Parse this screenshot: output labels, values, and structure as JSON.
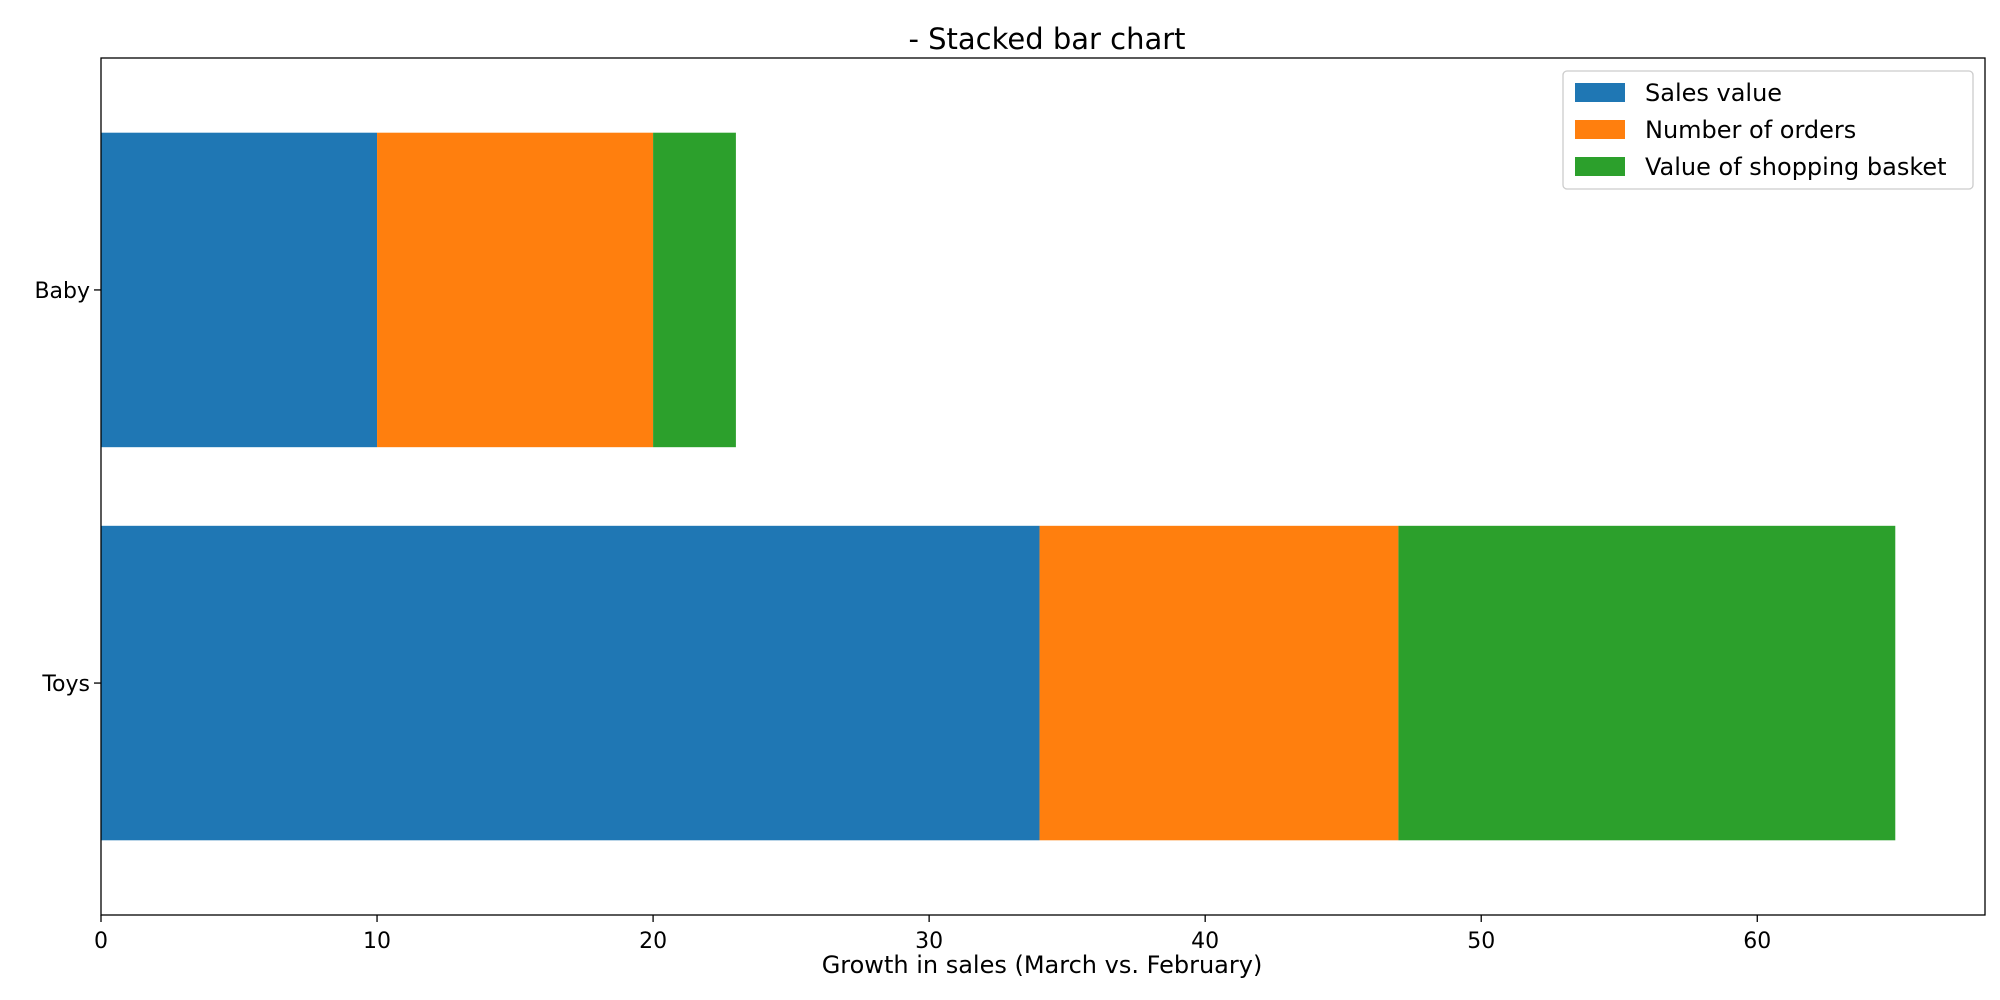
{
  "chart_data": {
    "type": "bar",
    "orientation": "horizontal",
    "stacked": true,
    "title": "- Stacked bar chart",
    "xlabel": "Growth in sales (March vs. February)",
    "ylabel": "",
    "categories": [
      "Baby",
      "Toys"
    ],
    "series": [
      {
        "name": "Sales value",
        "values": [
          10,
          34
        ],
        "color": "#1f77b4"
      },
      {
        "name": "Number of orders",
        "values": [
          10,
          13
        ],
        "color": "#ff7f0e"
      },
      {
        "name": "Value of shopping basket",
        "values": [
          3,
          18
        ],
        "color": "#2ca02c"
      }
    ],
    "xlim": [
      0,
      68.25
    ],
    "xticks": [
      0,
      10,
      20,
      30,
      40,
      50,
      60
    ],
    "xtick_labels": [
      "0",
      "10",
      "20",
      "30",
      "40",
      "50",
      "60"
    ],
    "grid": false,
    "legend_position": "top-right"
  }
}
